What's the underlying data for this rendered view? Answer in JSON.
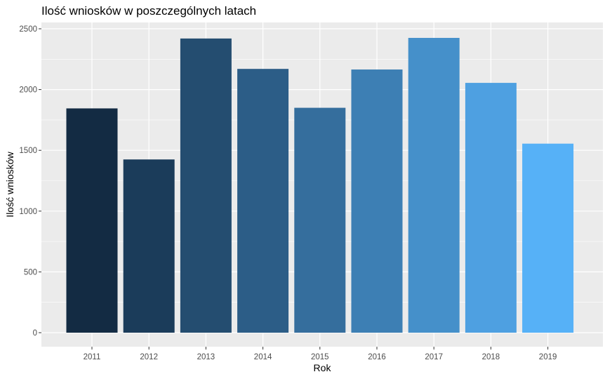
{
  "chart_data": {
    "type": "bar",
    "title": "Ilość wniosków w poszczególnych latach",
    "xlabel": "Rok",
    "ylabel": "Ilość wniosków",
    "categories": [
      "2011",
      "2012",
      "2013",
      "2014",
      "2015",
      "2016",
      "2017",
      "2018",
      "2019"
    ],
    "values": [
      1845,
      1425,
      2420,
      2170,
      1850,
      2165,
      2425,
      2055,
      1555
    ],
    "ylim": [
      0,
      2500
    ],
    "yticks": [
      0,
      500,
      1000,
      1500,
      2000,
      2500
    ],
    "grid": true,
    "legend": "none",
    "colors": {
      "panel_background": "#ebebeb",
      "grid": "#ffffff",
      "bar_low": "#132b43",
      "bar_high": "#56b1f7"
    }
  }
}
